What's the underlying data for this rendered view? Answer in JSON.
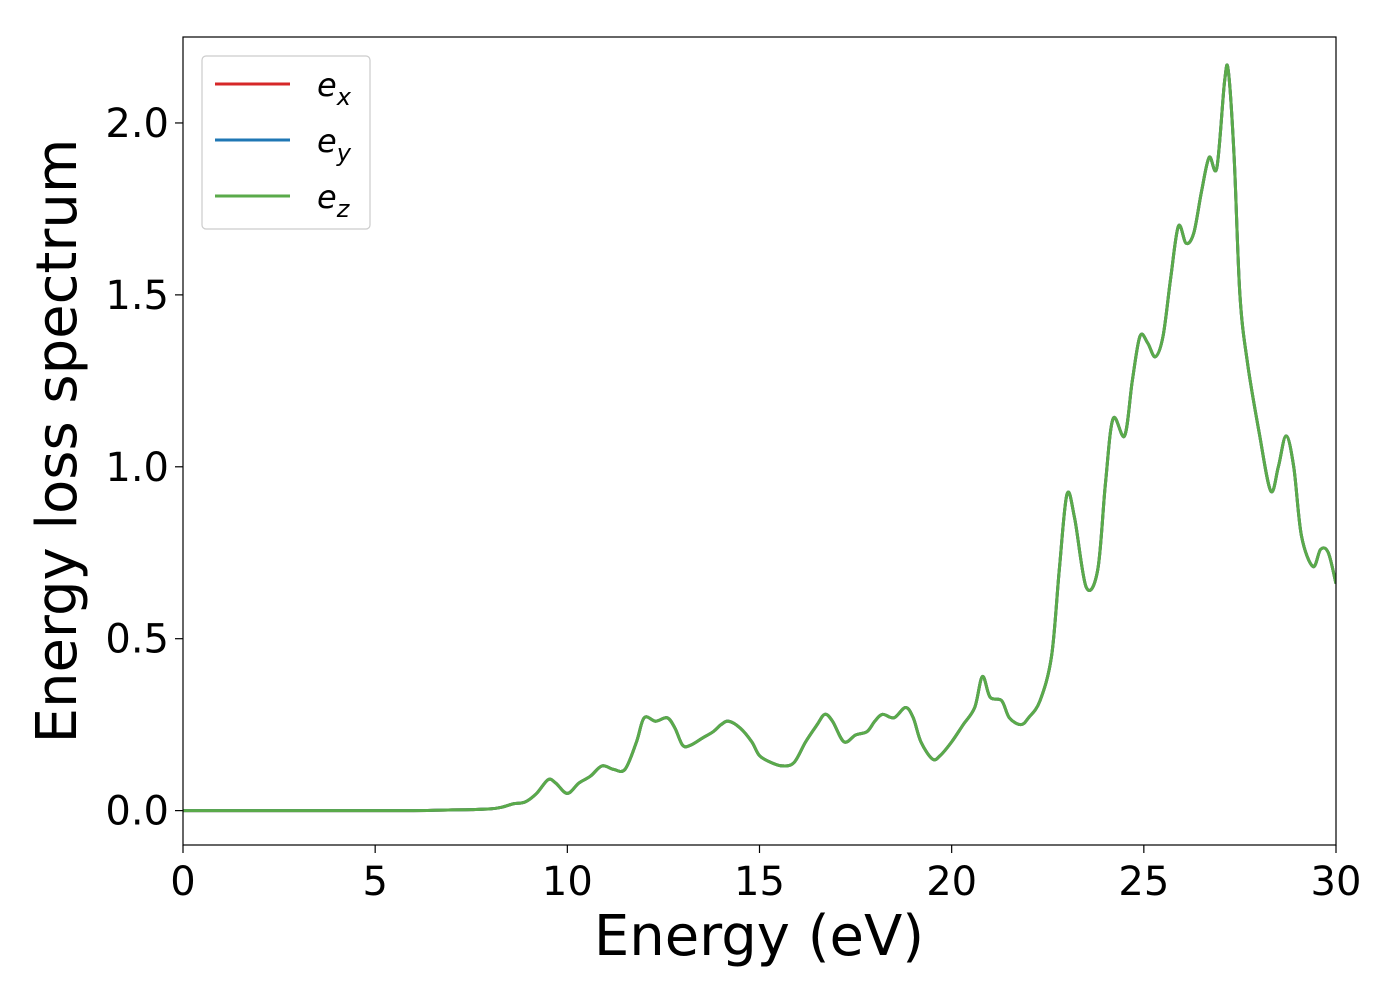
{
  "chart_data": {
    "type": "line",
    "xlabel": "Energy (eV)",
    "ylabel": "Energy loss spectrum",
    "xlim": [
      0,
      30
    ],
    "ylim": [
      -0.1,
      2.25
    ],
    "xticks": [
      0,
      5,
      10,
      15,
      20,
      25,
      30
    ],
    "xtick_labels": [
      "0",
      "5",
      "10",
      "15",
      "20",
      "25",
      "30"
    ],
    "yticks": [
      0.0,
      0.5,
      1.0,
      1.5,
      2.0
    ],
    "ytick_labels": [
      "0.0",
      "0.5",
      "1.0",
      "1.5",
      "2.0"
    ],
    "grid": false,
    "legend_position": "top-left",
    "x": [
      0,
      2,
      4,
      6,
      7,
      7.5,
      8,
      8.3,
      8.6,
      8.9,
      9.2,
      9.5,
      9.7,
      10.0,
      10.3,
      10.6,
      10.9,
      11.2,
      11.5,
      11.8,
      12.0,
      12.3,
      12.6,
      12.8,
      13.0,
      13.2,
      13.5,
      13.8,
      14.0,
      14.2,
      14.5,
      14.8,
      15.0,
      15.3,
      15.6,
      15.9,
      16.2,
      16.5,
      16.7,
      16.9,
      17.2,
      17.5,
      17.8,
      18.0,
      18.2,
      18.5,
      18.8,
      19.0,
      19.2,
      19.5,
      19.7,
      20.0,
      20.3,
      20.6,
      20.8,
      21.0,
      21.3,
      21.5,
      21.8,
      22.0,
      22.3,
      22.6,
      22.8,
      23.0,
      23.2,
      23.5,
      23.8,
      24.0,
      24.2,
      24.5,
      24.7,
      24.9,
      25.1,
      25.3,
      25.5,
      25.7,
      25.9,
      26.1,
      26.3,
      26.5,
      26.7,
      26.9,
      27.1,
      27.2,
      27.35,
      27.5,
      27.7,
      28.0,
      28.3,
      28.5,
      28.7,
      28.9,
      29.1,
      29.4,
      29.6,
      29.8,
      30.0
    ],
    "series": [
      {
        "name": "e_x",
        "legend_base": "e",
        "legend_sub": "x",
        "color": "#d62728",
        "y": [
          0.0,
          0.0,
          0.0,
          0.0,
          0.002,
          0.003,
          0.005,
          0.01,
          0.02,
          0.025,
          0.05,
          0.09,
          0.08,
          0.05,
          0.08,
          0.1,
          0.13,
          0.12,
          0.12,
          0.2,
          0.27,
          0.26,
          0.27,
          0.24,
          0.19,
          0.19,
          0.21,
          0.23,
          0.25,
          0.26,
          0.24,
          0.2,
          0.16,
          0.14,
          0.13,
          0.14,
          0.2,
          0.25,
          0.28,
          0.26,
          0.2,
          0.22,
          0.23,
          0.26,
          0.28,
          0.27,
          0.3,
          0.27,
          0.2,
          0.15,
          0.16,
          0.2,
          0.25,
          0.3,
          0.39,
          0.33,
          0.32,
          0.27,
          0.25,
          0.27,
          0.32,
          0.45,
          0.7,
          0.92,
          0.85,
          0.65,
          0.7,
          0.95,
          1.14,
          1.09,
          1.25,
          1.38,
          1.36,
          1.32,
          1.38,
          1.55,
          1.7,
          1.65,
          1.68,
          1.8,
          1.9,
          1.87,
          2.12,
          2.15,
          1.9,
          1.5,
          1.3,
          1.1,
          0.93,
          1.0,
          1.09,
          1.0,
          0.8,
          0.71,
          0.76,
          0.75,
          0.66
        ]
      },
      {
        "name": "e_y",
        "legend_base": "e",
        "legend_sub": "y",
        "color": "#1f77b4",
        "y": [
          0.0,
          0.0,
          0.0,
          0.0,
          0.002,
          0.003,
          0.005,
          0.01,
          0.02,
          0.025,
          0.05,
          0.09,
          0.08,
          0.05,
          0.08,
          0.1,
          0.13,
          0.12,
          0.12,
          0.2,
          0.27,
          0.26,
          0.27,
          0.24,
          0.19,
          0.19,
          0.21,
          0.23,
          0.25,
          0.26,
          0.24,
          0.2,
          0.16,
          0.14,
          0.13,
          0.14,
          0.2,
          0.25,
          0.28,
          0.26,
          0.2,
          0.22,
          0.23,
          0.26,
          0.28,
          0.27,
          0.3,
          0.27,
          0.2,
          0.15,
          0.16,
          0.2,
          0.25,
          0.3,
          0.39,
          0.33,
          0.32,
          0.27,
          0.25,
          0.27,
          0.32,
          0.45,
          0.7,
          0.92,
          0.85,
          0.65,
          0.7,
          0.95,
          1.14,
          1.09,
          1.25,
          1.38,
          1.36,
          1.32,
          1.38,
          1.55,
          1.7,
          1.65,
          1.68,
          1.8,
          1.9,
          1.87,
          2.12,
          2.15,
          1.9,
          1.5,
          1.3,
          1.1,
          0.93,
          1.0,
          1.09,
          1.0,
          0.8,
          0.71,
          0.76,
          0.75,
          0.66
        ]
      },
      {
        "name": "e_z",
        "legend_base": "e",
        "legend_sub": "z",
        "color": "#5aaa4a",
        "y": [
          0.0,
          0.0,
          0.0,
          0.0,
          0.002,
          0.003,
          0.005,
          0.01,
          0.02,
          0.025,
          0.05,
          0.09,
          0.08,
          0.05,
          0.08,
          0.1,
          0.13,
          0.12,
          0.12,
          0.2,
          0.27,
          0.26,
          0.27,
          0.24,
          0.19,
          0.19,
          0.21,
          0.23,
          0.25,
          0.26,
          0.24,
          0.2,
          0.16,
          0.14,
          0.13,
          0.14,
          0.2,
          0.25,
          0.28,
          0.26,
          0.2,
          0.22,
          0.23,
          0.26,
          0.28,
          0.27,
          0.3,
          0.27,
          0.2,
          0.15,
          0.16,
          0.2,
          0.25,
          0.3,
          0.39,
          0.33,
          0.32,
          0.27,
          0.25,
          0.27,
          0.32,
          0.45,
          0.7,
          0.92,
          0.85,
          0.65,
          0.7,
          0.95,
          1.14,
          1.09,
          1.25,
          1.38,
          1.36,
          1.32,
          1.38,
          1.55,
          1.7,
          1.65,
          1.68,
          1.8,
          1.9,
          1.87,
          2.12,
          2.15,
          1.9,
          1.5,
          1.3,
          1.1,
          0.93,
          1.0,
          1.09,
          1.0,
          0.8,
          0.71,
          0.76,
          0.75,
          0.66
        ]
      }
    ]
  }
}
